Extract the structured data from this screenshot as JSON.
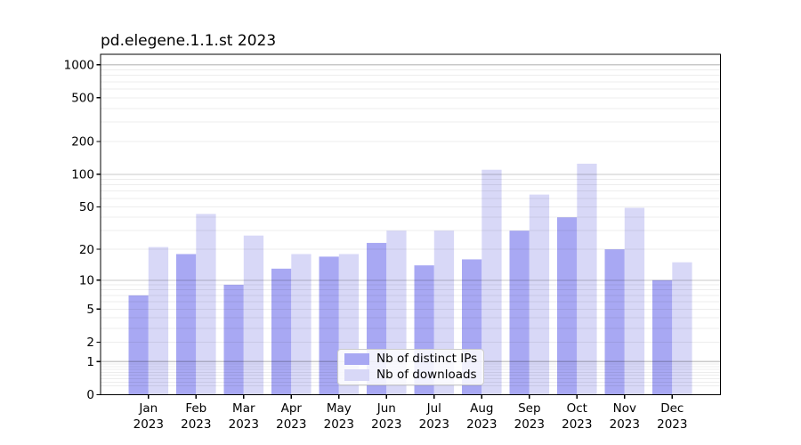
{
  "chart_data": {
    "type": "bar",
    "title": "pd.elegene.1.1.st 2023",
    "categories": [
      "Jan",
      "Feb",
      "Mar",
      "Apr",
      "May",
      "Jun",
      "Jul",
      "Aug",
      "Sep",
      "Oct",
      "Nov",
      "Dec"
    ],
    "year_label": "2023",
    "series": [
      {
        "name": "Nb of distinct IPs",
        "color": "#a8a8f3",
        "values": [
          7,
          18,
          9,
          13,
          17,
          23,
          14,
          16,
          30,
          40,
          20,
          10
        ]
      },
      {
        "name": "Nb of downloads",
        "color": "#d8d8f7",
        "values": [
          21,
          43,
          27,
          18,
          18,
          30,
          30,
          110,
          65,
          125,
          49,
          15
        ]
      }
    ],
    "y_ticks": [
      0,
      1,
      2,
      5,
      10,
      20,
      50,
      100,
      200,
      500,
      1000
    ],
    "ylim": [
      0,
      1000
    ],
    "y_scale": "log10(value+1)",
    "grid": "horizontal, major lines at 1/10/100/1000, faint minor log lines",
    "legend_position": "inside lower-center",
    "axis_color": "#000000",
    "grid_major_color": "rgba(0,0,0,0.21)",
    "grid_minor_color": "rgba(0,0,0,0.07)",
    "background": "#ffffff"
  }
}
